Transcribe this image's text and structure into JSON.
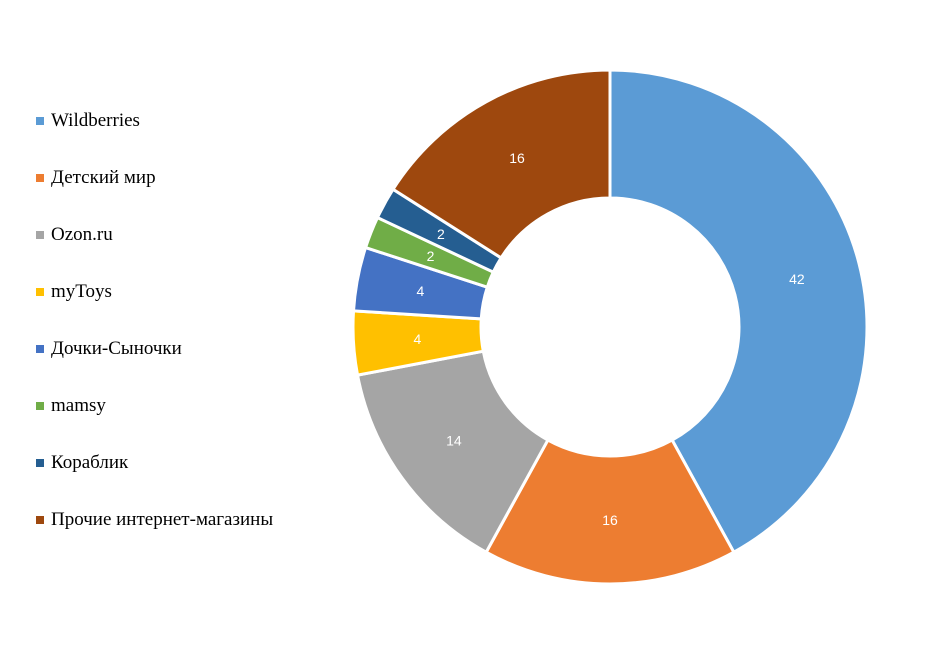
{
  "chart_data": {
    "type": "pie",
    "style": "donut",
    "title": "",
    "legend_position": "left",
    "categories": [
      "Wildberries",
      "Детский мир",
      "Ozon.ru",
      "myToys",
      "Дочки-Сыночки",
      "mamsy",
      "Кораблик",
      "Прочие интернет-магазины"
    ],
    "values": [
      42,
      16,
      14,
      4,
      4,
      2,
      2,
      16
    ],
    "colors": [
      "#5B9BD5",
      "#ED7D31",
      "#A5A5A5",
      "#FFC000",
      "#4472C4",
      "#70AD47",
      "#255E91",
      "#9E480E"
    ]
  }
}
